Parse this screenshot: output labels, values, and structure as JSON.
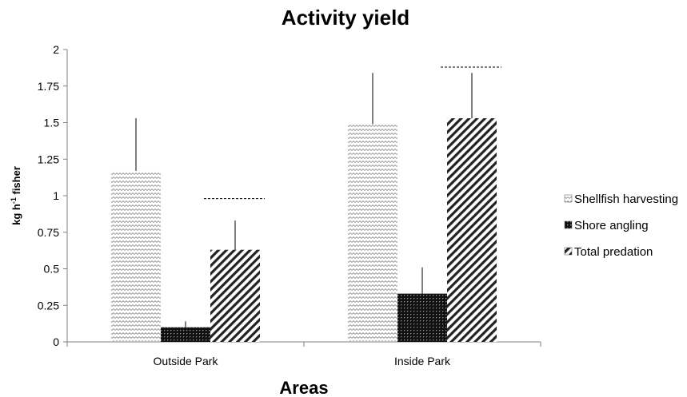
{
  "chart_data": {
    "type": "bar",
    "title": "Activity yield",
    "xlabel": "Areas",
    "ylabel_main": "kg h",
    "ylabel_sup": "-1",
    "ylabel_tail": " fisher",
    "ylim": [
      0,
      2
    ],
    "yticks": [
      "0",
      "0.25",
      "0.5",
      "0.75",
      "1",
      "1.25",
      "1.5",
      "1.75",
      "2"
    ],
    "categories": [
      "Outside Park",
      "Inside Park"
    ],
    "series": [
      {
        "name": "Shellfish harvesting",
        "pattern": "zigzag",
        "values": [
          1.17,
          1.49
        ],
        "errors": [
          0.36,
          0.35
        ]
      },
      {
        "name": "Shore angling",
        "pattern": "dots",
        "values": [
          0.1,
          0.33
        ],
        "errors": [
          0.04,
          0.18
        ]
      },
      {
        "name": "Total predation",
        "pattern": "diagonal",
        "values": [
          0.63,
          1.53
        ],
        "errors": [
          0.2,
          0.31
        ]
      }
    ],
    "reference_lines": [
      {
        "category": "Outside Park",
        "series": "Total predation",
        "value": 0.98
      },
      {
        "category": "Inside Park",
        "series": "Total predation",
        "value": 1.88
      }
    ],
    "grid": false,
    "legend_position": "right"
  },
  "colors": {
    "axis": "#808080",
    "zigzag": "#9a9a9a",
    "dots": "#111111",
    "diagonal": "#222222"
  }
}
